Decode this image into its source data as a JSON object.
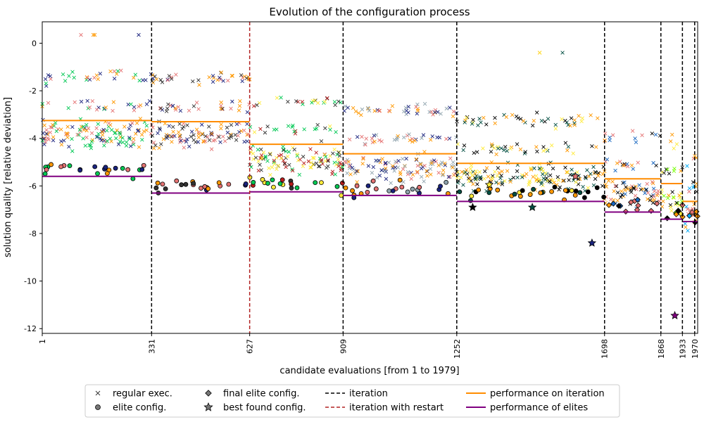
{
  "chart_data": {
    "type": "scatter",
    "title": "Evolution of the configuration process",
    "xlabel": "candidate evaluations [from 1 to 1979]",
    "ylabel": "solution quality [relative deviation]",
    "xlim": [
      1,
      1979
    ],
    "ylim": [
      -12.2,
      0.9
    ],
    "yticks": [
      0,
      -2,
      -4,
      -6,
      -8,
      -10,
      -12
    ],
    "iteration_boundaries": [
      {
        "x": 331,
        "label": "331",
        "restart": false
      },
      {
        "x": 627,
        "label": "627",
        "restart": true
      },
      {
        "x": 909,
        "label": "909",
        "restart": false
      },
      {
        "x": 1252,
        "label": "1252",
        "restart": false
      },
      {
        "x": 1698,
        "label": "1698",
        "restart": false
      },
      {
        "x": 1868,
        "label": "1868",
        "restart": false
      },
      {
        "x": 1933,
        "label": "1933",
        "restart": false
      },
      {
        "x": 1970,
        "label": "1970",
        "restart": false
      }
    ],
    "x_start_label": "1",
    "iterations": [
      {
        "start": 1,
        "end": 331,
        "iteration_perf": -3.25,
        "elite_perf": -5.6,
        "colors": [
          "#1a237e",
          "#e57373",
          "#00c853",
          "#ff9800"
        ]
      },
      {
        "start": 331,
        "end": 627,
        "iteration_perf": -3.3,
        "elite_perf": -6.3,
        "colors": [
          "#333333",
          "#1a237e",
          "#e57373",
          "#ff9800"
        ]
      },
      {
        "start": 627,
        "end": 909,
        "iteration_perf": -4.25,
        "elite_perf": -6.25,
        "colors": [
          "#b71c1c",
          "#333333",
          "#ffeb3b",
          "#00c853"
        ]
      },
      {
        "start": 909,
        "end": 1252,
        "iteration_perf": -4.65,
        "elite_perf": -6.4,
        "colors": [
          "#ff9800",
          "#90a4ae",
          "#1a237e",
          "#e57373"
        ]
      },
      {
        "start": 1252,
        "end": 1698,
        "iteration_perf": -5.05,
        "elite_perf": -6.65,
        "colors": [
          "#000000",
          "#ffeb3b",
          "#004d40",
          "#ff9800"
        ]
      },
      {
        "start": 1698,
        "end": 1868,
        "iteration_perf": -5.7,
        "elite_perf": -7.1,
        "colors": [
          "#000000",
          "#ff9800",
          "#1565c0",
          "#e57373"
        ]
      },
      {
        "start": 1868,
        "end": 1933,
        "iteration_perf": -5.9,
        "elite_perf": -7.4,
        "colors": [
          "#76ff03",
          "#ffeb3b",
          "#000000",
          "#ff9800"
        ]
      },
      {
        "start": 1933,
        "end": 1970,
        "iteration_perf": -6.65,
        "elite_perf": -7.5,
        "colors": [
          "#03a9f4",
          "#ff9800",
          "#000000",
          "#e57373"
        ]
      },
      {
        "start": 1970,
        "end": 1979,
        "iteration_perf": -6.65,
        "elite_perf": -7.5,
        "colors": [
          "#ff9800",
          "#000000"
        ]
      }
    ],
    "series": [
      {
        "name": "regular exec.",
        "marker": "x"
      },
      {
        "name": "elite config.",
        "marker": "circle"
      },
      {
        "name": "final elite config.",
        "marker": "diamond"
      },
      {
        "name": "best found config.",
        "marker": "star"
      },
      {
        "name": "iteration",
        "marker": "dashed-black"
      },
      {
        "name": "iteration with restart",
        "marker": "dashed-red"
      },
      {
        "name": "performance on iteration",
        "marker": "line-orange"
      },
      {
        "name": "performance of elites",
        "marker": "line-purple"
      }
    ],
    "legend_position": "bottom-center",
    "grid": false,
    "colors": {
      "iteration_line": "#000000",
      "restart_line": "#b22222",
      "iteration_perf": "#ff8c00",
      "elite_perf": "#800080"
    }
  }
}
